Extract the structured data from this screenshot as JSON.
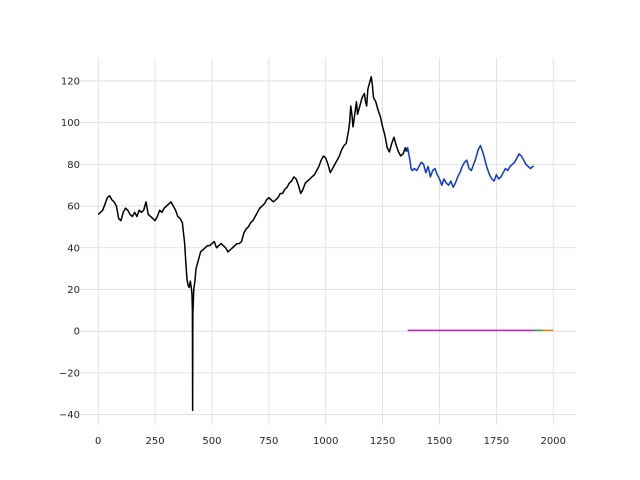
{
  "chart_data": {
    "type": "line",
    "title": "",
    "xlabel": "",
    "ylabel": "",
    "xlim": [
      -80,
      2100
    ],
    "ylim": [
      -45,
      131
    ],
    "grid": true,
    "legend": "none",
    "x_ticks": [
      0,
      250,
      500,
      750,
      1000,
      1250,
      1500,
      1750,
      2000
    ],
    "y_ticks": [
      -40,
      -20,
      0,
      20,
      40,
      60,
      80,
      100,
      120
    ],
    "series": [
      {
        "color": "#000000",
        "x": [
          0,
          10,
          20,
          30,
          40,
          50,
          60,
          70,
          80,
          90,
          100,
          110,
          120,
          130,
          140,
          150,
          160,
          170,
          180,
          190,
          200,
          210,
          220,
          230,
          240,
          250,
          260,
          270,
          280,
          290,
          300,
          310,
          320,
          330,
          340,
          350,
          360,
          370,
          375,
          380,
          385,
          390,
          395,
          400,
          405,
          410,
          412,
          414,
          415,
          416,
          418,
          420,
          425,
          430,
          440,
          450,
          460,
          470,
          480,
          490,
          500,
          510,
          520,
          530,
          540,
          550,
          560,
          570,
          580,
          590,
          600,
          610,
          620,
          630,
          640,
          650,
          660,
          670,
          680,
          690,
          700,
          710,
          720,
          730,
          740,
          750,
          760,
          770,
          780,
          790,
          800,
          810,
          820,
          830,
          840,
          850,
          860,
          870,
          880,
          890,
          900,
          910,
          920,
          930,
          940,
          950,
          960,
          970,
          980,
          990,
          1000,
          1010,
          1020,
          1030,
          1040,
          1050,
          1060,
          1070,
          1080,
          1090,
          1095,
          1100,
          1105,
          1110,
          1115,
          1120,
          1125,
          1130,
          1135,
          1140,
          1150,
          1160,
          1170,
          1175,
          1180,
          1185,
          1190,
          1195,
          1200,
          1205,
          1210,
          1220,
          1230,
          1240,
          1250,
          1260,
          1270,
          1280,
          1290,
          1300,
          1310,
          1320,
          1330,
          1340,
          1350,
          1355
        ],
        "values": [
          56,
          57,
          58,
          61,
          64,
          65,
          63,
          62,
          60,
          54,
          53,
          57,
          59,
          58,
          56,
          55,
          57,
          55,
          58,
          57,
          58,
          62,
          56,
          55,
          54,
          53,
          55,
          58,
          57,
          59,
          60,
          61,
          62,
          60,
          58,
          55,
          54,
          52,
          47,
          42,
          33,
          25,
          22,
          21,
          24,
          20,
          18,
          10,
          -38,
          8,
          14,
          20,
          24,
          30,
          34,
          38,
          39,
          40,
          41,
          41,
          42,
          43,
          40,
          41,
          42,
          41,
          40,
          38,
          39,
          40,
          41,
          42,
          42,
          43,
          47,
          49,
          50,
          52,
          53,
          55,
          57,
          59,
          60,
          61,
          63,
          64,
          63,
          62,
          63,
          64,
          66,
          66,
          68,
          69,
          71,
          72,
          74,
          73,
          70,
          66,
          68,
          71,
          72,
          73,
          74,
          75,
          77,
          79,
          82,
          84,
          83,
          80,
          76,
          78,
          80,
          82,
          84,
          87,
          89,
          90,
          93,
          96,
          100,
          108,
          104,
          98,
          102,
          106,
          110,
          104,
          108,
          112,
          114,
          110,
          108,
          116,
          118,
          120,
          122,
          118,
          112,
          110,
          106,
          103,
          98,
          94,
          88,
          86,
          90,
          93,
          89,
          86,
          84,
          85,
          88,
          86
        ]
      },
      {
        "color": "#0a35e8",
        "x": [
          1355,
          1360,
          1365,
          1370,
          1375,
          1380,
          1390,
          1400,
          1410,
          1420,
          1430,
          1440,
          1450,
          1460,
          1470,
          1480,
          1490,
          1500,
          1510,
          1520,
          1530,
          1540,
          1550,
          1560,
          1570,
          1580,
          1590,
          1600,
          1610,
          1620,
          1630,
          1640,
          1650,
          1660,
          1670,
          1680,
          1690,
          1700,
          1710,
          1720,
          1730,
          1740,
          1750,
          1760,
          1770,
          1780,
          1790,
          1800,
          1810,
          1820,
          1830,
          1840,
          1850,
          1860,
          1870,
          1880,
          1890,
          1900,
          1910,
          1915
        ],
        "values": [
          86,
          88,
          85,
          82,
          78,
          77,
          78,
          77,
          79,
          81,
          80,
          76,
          79,
          74,
          77,
          78,
          75,
          73,
          70,
          73,
          71,
          70,
          72,
          69,
          71,
          74,
          76,
          79,
          81,
          82,
          78,
          77,
          80,
          83,
          87,
          89,
          86,
          82,
          78,
          75,
          73,
          72,
          75,
          73,
          74,
          76,
          78,
          77,
          79,
          80,
          81,
          83,
          85,
          84,
          82,
          80,
          79,
          78,
          79,
          79
        ]
      },
      {
        "color": "#c41fc4",
        "x": [
          1360,
          1920
        ],
        "values": [
          0.4,
          0.4
        ]
      },
      {
        "color": "#23a84e",
        "x": [
          1915,
          1955
        ],
        "values": [
          0.4,
          0.4
        ]
      },
      {
        "color": "#f57f17",
        "x": [
          1955,
          2000
        ],
        "values": [
          0.4,
          0.4
        ]
      }
    ]
  }
}
